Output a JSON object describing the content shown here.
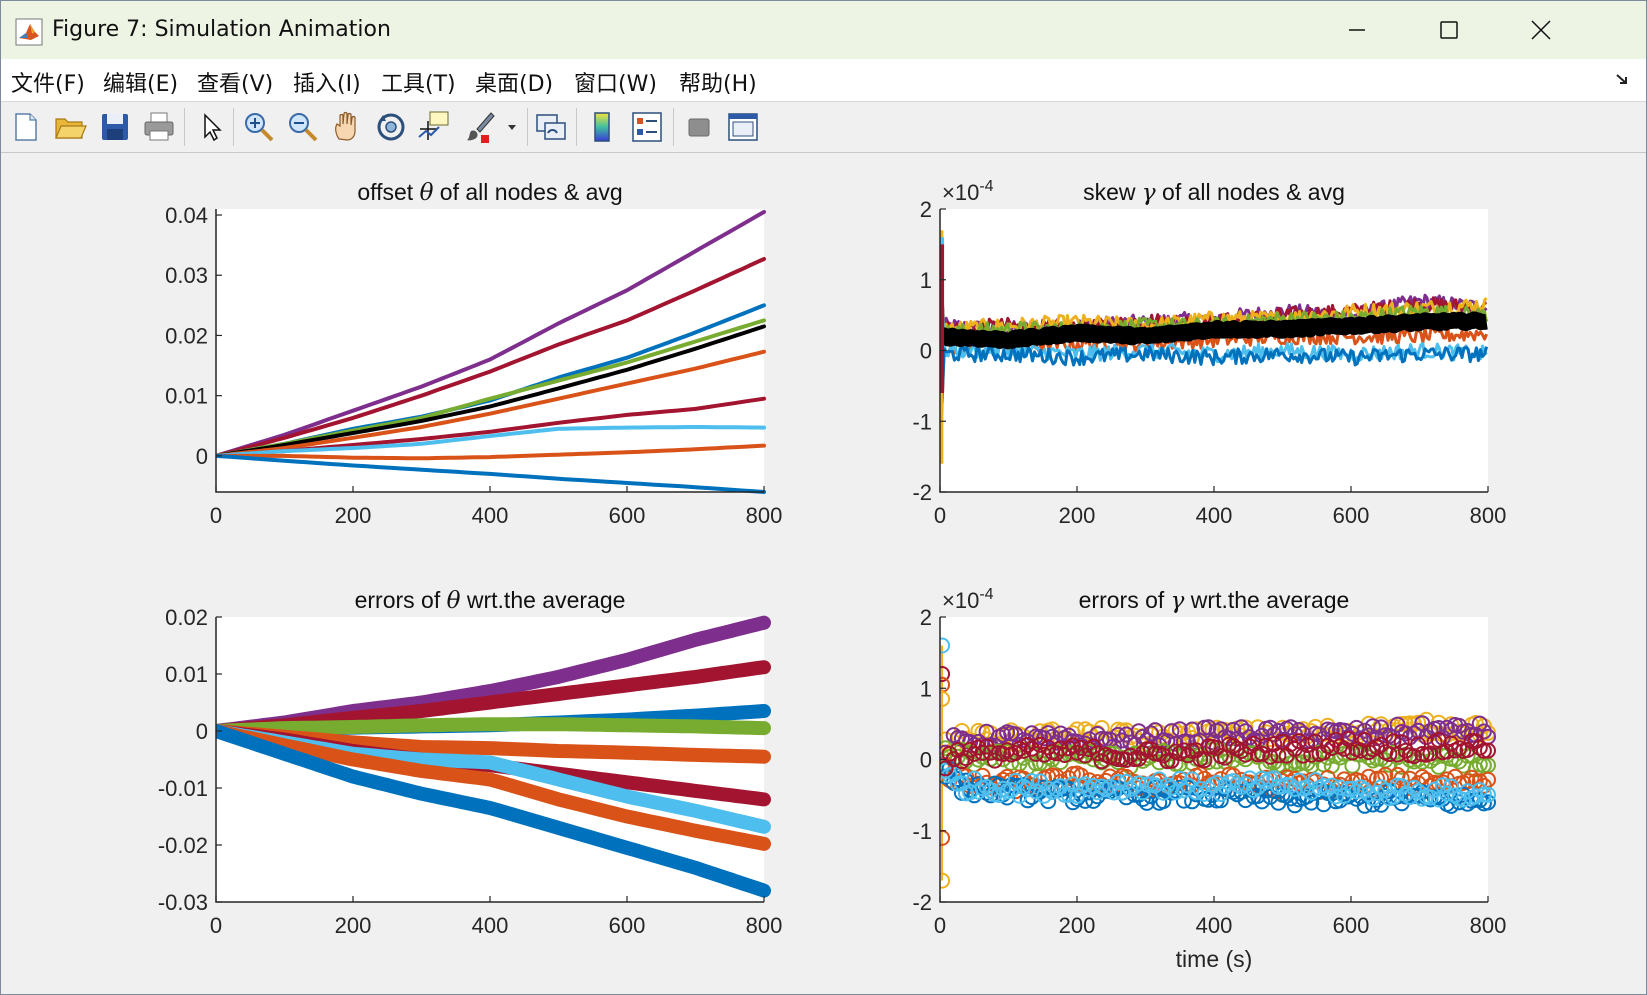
{
  "window": {
    "title": "Figure 7: Simulation Animation"
  },
  "menu": [
    "文件(F)",
    "编辑(E)",
    "查看(V)",
    "插入(I)",
    "工具(T)",
    "桌面(D)",
    "窗口(W)",
    "帮助(H)"
  ],
  "toolbar": {
    "tools": [
      "new-figure",
      "open-file",
      "save",
      "print",
      "edit-plot-arrow",
      "zoom-in",
      "zoom-out",
      "pan",
      "rotate-3d",
      "data-cursor",
      "brush",
      "brush-dropdown",
      "link-plot",
      "insert-colorbar",
      "insert-legend",
      "hide-plot-tools",
      "show-plot-tools"
    ]
  },
  "colors": {
    "blue": "#0072BD",
    "orange": "#D95319",
    "yellow": "#EDB120",
    "purple": "#7E2F8E",
    "green": "#77AC30",
    "cyan": "#4DBEEE",
    "maroon": "#A2142F",
    "black": "#000000"
  },
  "chart_data": [
    {
      "type": "line",
      "title_prefix": "offset ",
      "title_sym": "θ",
      "title_suffix": " of all nodes & avg",
      "xlim": [
        0,
        800
      ],
      "ylim": [
        -0.006,
        0.041
      ],
      "xticks": [
        0,
        200,
        400,
        600,
        800
      ],
      "yticks": [
        {
          "v": 0,
          "label": "0"
        },
        {
          "v": 0.01,
          "label": "0.01"
        },
        {
          "v": 0.02,
          "label": "0.02"
        },
        {
          "v": 0.03,
          "label": "0.03"
        },
        {
          "v": 0.04,
          "label": "0.04"
        }
      ],
      "x": [
        0,
        100,
        200,
        300,
        400,
        500,
        600,
        700,
        800
      ],
      "series": [
        {
          "name": "node-purple",
          "color": "purple",
          "values": [
            0,
            0.0035,
            0.0075,
            0.0115,
            0.016,
            0.022,
            0.0275,
            0.034,
            0.0405
          ]
        },
        {
          "name": "node-maroon-1",
          "color": "maroon",
          "values": [
            0,
            0.003,
            0.0063,
            0.01,
            0.014,
            0.0185,
            0.0225,
            0.0275,
            0.0327
          ]
        },
        {
          "name": "node-blue-high",
          "color": "blue",
          "values": [
            0,
            0.002,
            0.0045,
            0.0065,
            0.0092,
            0.013,
            0.0163,
            0.0205,
            0.025
          ]
        },
        {
          "name": "node-green",
          "color": "green",
          "values": [
            0,
            0.002,
            0.0042,
            0.0063,
            0.0095,
            0.0125,
            0.0155,
            0.019,
            0.0225
          ]
        },
        {
          "name": "average",
          "color": "black",
          "values": [
            0,
            0.0018,
            0.0038,
            0.0058,
            0.0082,
            0.0112,
            0.0143,
            0.0178,
            0.0215
          ]
        },
        {
          "name": "node-orange-1",
          "color": "orange",
          "values": [
            0,
            0.0013,
            0.003,
            0.0048,
            0.007,
            0.0095,
            0.012,
            0.0145,
            0.0173
          ]
        },
        {
          "name": "node-maroon-2",
          "color": "maroon",
          "values": [
            0,
            0.0008,
            0.0018,
            0.0028,
            0.004,
            0.0055,
            0.0068,
            0.0078,
            0.0095
          ]
        },
        {
          "name": "node-cyan",
          "color": "cyan",
          "values": [
            0,
            0.0008,
            0.0013,
            0.002,
            0.0033,
            0.0045,
            0.0047,
            0.0048,
            0.0047
          ]
        },
        {
          "name": "node-orange-2",
          "color": "orange",
          "values": [
            0,
            0.0,
            -0.0003,
            -0.0004,
            -0.0002,
            0.0002,
            0.0006,
            0.0011,
            0.0017
          ]
        },
        {
          "name": "node-blue-low",
          "color": "blue",
          "values": [
            0,
            -0.0008,
            -0.0016,
            -0.0023,
            -0.003,
            -0.0038,
            -0.0045,
            -0.0052,
            -0.006
          ]
        }
      ]
    },
    {
      "type": "line",
      "title_prefix": "skew ",
      "title_sym": "γ",
      "title_suffix": " of all nodes & avg",
      "exponent": "×10",
      "exponent_power": "-4",
      "xlim": [
        0,
        800
      ],
      "ylim": [
        -2,
        2
      ],
      "xticks": [
        0,
        200,
        400,
        600,
        800
      ],
      "yticks": [
        {
          "v": -2,
          "label": "-2"
        },
        {
          "v": -1,
          "label": "-1"
        },
        {
          "v": 0,
          "label": "0"
        },
        {
          "v": 1,
          "label": "1"
        },
        {
          "v": 2,
          "label": "2"
        }
      ],
      "x": [
        0,
        100,
        200,
        300,
        400,
        500,
        600,
        700,
        800
      ],
      "series": [
        {
          "name": "node-purple",
          "color": "purple",
          "values": [
            0.35,
            0.3,
            0.35,
            0.4,
            0.45,
            0.55,
            0.5,
            0.7,
            0.6
          ]
        },
        {
          "name": "node-maroon",
          "color": "maroon",
          "values": [
            0.3,
            0.35,
            0.3,
            0.42,
            0.4,
            0.5,
            0.55,
            0.65,
            0.6
          ]
        },
        {
          "name": "node-yellow",
          "color": "yellow",
          "values": [
            0.3,
            0.35,
            0.4,
            0.35,
            0.45,
            0.45,
            0.55,
            0.6,
            0.65
          ]
        },
        {
          "name": "node-green",
          "color": "green",
          "values": [
            0.25,
            0.3,
            0.3,
            0.35,
            0.35,
            0.45,
            0.45,
            0.55,
            0.5
          ]
        },
        {
          "name": "node-orange",
          "color": "orange",
          "values": [
            0.0,
            0.05,
            0.1,
            0.1,
            0.15,
            0.2,
            0.2,
            0.2,
            0.25
          ]
        },
        {
          "name": "node-cyan",
          "color": "cyan",
          "values": [
            0.0,
            0.0,
            -0.05,
            0.0,
            -0.05,
            0.0,
            -0.05,
            0.0,
            -0.05
          ]
        },
        {
          "name": "node-blue",
          "color": "blue",
          "values": [
            -0.05,
            -0.05,
            -0.1,
            -0.05,
            -0.1,
            -0.05,
            -0.1,
            -0.05,
            -0.05
          ]
        },
        {
          "name": "average",
          "color": "black",
          "values": [
            0.2,
            0.15,
            0.25,
            0.2,
            0.3,
            0.3,
            0.35,
            0.4,
            0.42
          ]
        }
      ]
    },
    {
      "type": "line",
      "title_prefix": "errors of ",
      "title_sym": "θ",
      "title_suffix": " wrt.the average",
      "xlim": [
        0,
        800
      ],
      "ylim": [
        -0.03,
        0.02
      ],
      "xticks": [
        0,
        200,
        400,
        600,
        800
      ],
      "yticks": [
        {
          "v": -0.03,
          "label": "-0.03"
        },
        {
          "v": -0.02,
          "label": "-0.02"
        },
        {
          "v": -0.01,
          "label": "-0.01"
        },
        {
          "v": 0,
          "label": "0"
        },
        {
          "v": 0.01,
          "label": "0.01"
        },
        {
          "v": 0.02,
          "label": "0.02"
        }
      ],
      "x": [
        0,
        100,
        200,
        300,
        400,
        500,
        600,
        700,
        800
      ],
      "series": [
        {
          "name": "err-purple",
          "color": "purple",
          "values": [
            0,
            0.0015,
            0.0035,
            0.005,
            0.007,
            0.0095,
            0.0125,
            0.016,
            0.019
          ]
        },
        {
          "name": "err-maroon-1",
          "color": "maroon",
          "values": [
            0,
            0.001,
            0.0023,
            0.0035,
            0.005,
            0.0065,
            0.008,
            0.0095,
            0.0112
          ]
        },
        {
          "name": "err-blue-1",
          "color": "blue",
          "values": [
            0,
            0.0003,
            0.0006,
            0.0008,
            0.001,
            0.0015,
            0.002,
            0.0027,
            0.0035
          ]
        },
        {
          "name": "err-green",
          "color": "green",
          "values": [
            0,
            0.0005,
            0.0007,
            0.001,
            0.0012,
            0.0012,
            0.001,
            0.0008,
            0.0005
          ]
        },
        {
          "name": "err-orange-1",
          "color": "orange",
          "values": [
            0,
            -0.001,
            -0.002,
            -0.0028,
            -0.003,
            -0.0035,
            -0.0038,
            -0.0042,
            -0.0045
          ]
        },
        {
          "name": "err-maroon-2",
          "color": "maroon",
          "values": [
            0,
            -0.0015,
            -0.0035,
            -0.005,
            -0.006,
            -0.0075,
            -0.009,
            -0.0105,
            -0.012
          ]
        },
        {
          "name": "err-cyan",
          "color": "cyan",
          "values": [
            0,
            -0.002,
            -0.004,
            -0.005,
            -0.0055,
            -0.0085,
            -0.0115,
            -0.014,
            -0.0168
          ]
        },
        {
          "name": "err-orange-2",
          "color": "orange",
          "values": [
            0,
            -0.0025,
            -0.005,
            -0.007,
            -0.0085,
            -0.012,
            -0.015,
            -0.0175,
            -0.0198
          ]
        },
        {
          "name": "err-blue-2",
          "color": "blue",
          "values": [
            0,
            -0.004,
            -0.008,
            -0.011,
            -0.0135,
            -0.017,
            -0.0205,
            -0.024,
            -0.028
          ]
        }
      ]
    },
    {
      "type": "scatter",
      "title_prefix": "errors of ",
      "title_sym": "γ",
      "title_suffix": " wrt.the average",
      "exponent": "×10",
      "exponent_power": "-4",
      "xlabel": "time (s)",
      "xlim": [
        0,
        800
      ],
      "ylim": [
        -2,
        2
      ],
      "xticks": [
        0,
        200,
        400,
        600,
        800
      ],
      "yticks": [
        {
          "v": -2,
          "label": "-2"
        },
        {
          "v": -1,
          "label": "-1"
        },
        {
          "v": 0,
          "label": "0"
        },
        {
          "v": 1,
          "label": "1"
        },
        {
          "v": 2,
          "label": "2"
        }
      ],
      "initial_points": [
        {
          "color": "cyan",
          "x": 3,
          "y": 1.6
        },
        {
          "color": "maroon",
          "x": 3,
          "y": 1.2
        },
        {
          "color": "orange",
          "x": 3,
          "y": 1.05
        },
        {
          "color": "yellow",
          "x": 3,
          "y": 0.85
        },
        {
          "color": "orange",
          "x": 3,
          "y": -1.1
        },
        {
          "color": "yellow",
          "x": 3,
          "y": -1.7
        }
      ],
      "x": [
        0,
        100,
        200,
        300,
        400,
        500,
        600,
        700,
        800
      ],
      "series": [
        {
          "name": "err-yellow",
          "color": "yellow",
          "values": [
            0.3,
            0.3,
            0.35,
            0.3,
            0.35,
            0.35,
            0.4,
            0.45,
            0.45
          ]
        },
        {
          "name": "err-purple",
          "color": "purple",
          "values": [
            0.25,
            0.3,
            0.25,
            0.3,
            0.35,
            0.35,
            0.35,
            0.4,
            0.4
          ]
        },
        {
          "name": "err-green",
          "color": "green",
          "values": [
            0.05,
            0.0,
            0.0,
            0.0,
            0.05,
            0.0,
            0.0,
            0.0,
            -0.05
          ]
        },
        {
          "name": "err-orange",
          "color": "orange",
          "values": [
            -0.3,
            -0.35,
            -0.3,
            -0.35,
            -0.3,
            -0.35,
            -0.35,
            -0.3,
            -0.3
          ]
        },
        {
          "name": "err-blue",
          "color": "blue",
          "values": [
            -0.35,
            -0.45,
            -0.5,
            -0.5,
            -0.5,
            -0.55,
            -0.55,
            -0.55,
            -0.6
          ]
        },
        {
          "name": "err-cyan",
          "color": "cyan",
          "values": [
            -0.35,
            -0.4,
            -0.4,
            -0.35,
            -0.4,
            -0.35,
            -0.45,
            -0.45,
            -0.5
          ]
        },
        {
          "name": "err-maroon",
          "color": "maroon",
          "values": [
            0.05,
            0.1,
            0.1,
            0.05,
            0.1,
            0.15,
            0.2,
            0.15,
            0.2
          ]
        }
      ]
    }
  ]
}
